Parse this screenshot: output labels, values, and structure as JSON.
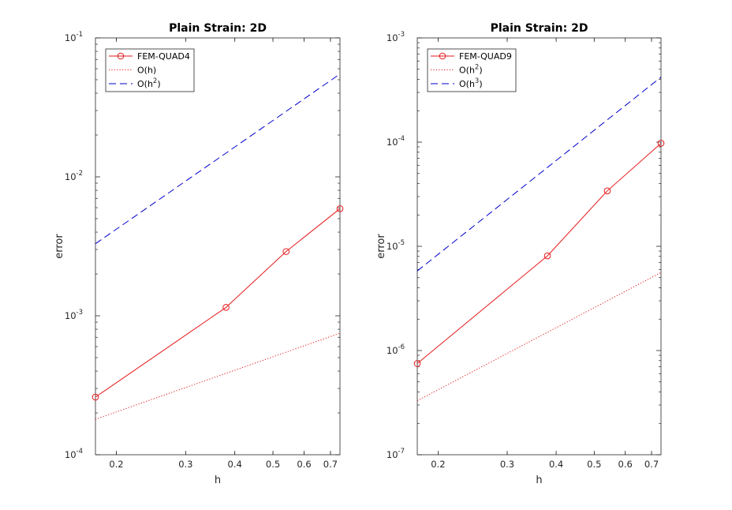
{
  "chart_data": [
    {
      "type": "line",
      "title": "Plain Strain: 2D",
      "xlabel": "h",
      "ylabel": "error",
      "xscale": "log",
      "yscale": "log",
      "xlim": [
        0.177,
        0.74
      ],
      "ylim": [
        0.0001,
        0.1
      ],
      "grid": false,
      "legend_position": "top-left",
      "xticks": [
        {
          "v": 0.2,
          "label": "0.2"
        },
        {
          "v": 0.3,
          "label": "0.3"
        },
        {
          "v": 0.4,
          "label": "0.4"
        },
        {
          "v": 0.5,
          "label": "0.5"
        },
        {
          "v": 0.6,
          "label": "0.6"
        },
        {
          "v": 0.7,
          "label": "0.7"
        }
      ],
      "yticks": [
        {
          "v": 0.0001,
          "base": "10",
          "exp": "-4"
        },
        {
          "v": 0.001,
          "base": "10",
          "exp": "-3"
        },
        {
          "v": 0.01,
          "base": "10",
          "exp": "-2"
        },
        {
          "v": 0.1,
          "base": "10",
          "exp": "-1"
        }
      ],
      "series": [
        {
          "name": "FEM-QUAD4",
          "legend": {
            "base": "FEM-QUAD4",
            "sup": ""
          },
          "color": "#e41a1c",
          "style": "solid",
          "marker": "circle",
          "x": [
            0.177,
            0.38,
            0.54,
            0.74
          ],
          "y": [
            0.00026,
            0.00115,
            0.0029,
            0.0059
          ]
        },
        {
          "name": "O(h)",
          "legend": {
            "base": "O(h)",
            "sup": ""
          },
          "color": "#e41a1c",
          "style": "dotted",
          "marker": "none",
          "x": [
            0.177,
            0.74
          ],
          "y": [
            0.00018,
            0.00075
          ]
        },
        {
          "name": "O(h^2)",
          "legend": {
            "base": "O(h",
            "sup": "2",
            "tail": ")"
          },
          "color": "#0000cc",
          "style": "dashed",
          "marker": "none",
          "x": [
            0.177,
            0.74
          ],
          "y": [
            0.0033,
            0.055
          ]
        }
      ]
    },
    {
      "type": "line",
      "title": "Plain Strain: 2D",
      "xlabel": "h",
      "ylabel": "error",
      "xscale": "log",
      "yscale": "log",
      "xlim": [
        0.177,
        0.74
      ],
      "ylim": [
        1e-07,
        0.001
      ],
      "grid": false,
      "legend_position": "top-left",
      "xticks": [
        {
          "v": 0.2,
          "label": "0.2"
        },
        {
          "v": 0.3,
          "label": "0.3"
        },
        {
          "v": 0.4,
          "label": "0.4"
        },
        {
          "v": 0.5,
          "label": "0.5"
        },
        {
          "v": 0.6,
          "label": "0.6"
        },
        {
          "v": 0.7,
          "label": "0.7"
        }
      ],
      "yticks": [
        {
          "v": 1e-07,
          "base": "10",
          "exp": "-7"
        },
        {
          "v": 1e-06,
          "base": "10",
          "exp": "-6"
        },
        {
          "v": 1e-05,
          "base": "10",
          "exp": "-5"
        },
        {
          "v": 0.0001,
          "base": "10",
          "exp": "-4"
        },
        {
          "v": 0.001,
          "base": "10",
          "exp": "-3"
        }
      ],
      "series": [
        {
          "name": "FEM-QUAD9",
          "legend": {
            "base": "FEM-QUAD9",
            "sup": ""
          },
          "color": "#e41a1c",
          "style": "solid",
          "marker": "circle",
          "x": [
            0.177,
            0.38,
            0.54,
            0.74
          ],
          "y": [
            7.5e-07,
            8.1e-06,
            3.4e-05,
            9.75e-05
          ]
        },
        {
          "name": "O(h^2)",
          "legend": {
            "base": "O(h",
            "sup": "2",
            "tail": ")"
          },
          "color": "#e41a1c",
          "style": "dotted",
          "marker": "none",
          "x": [
            0.177,
            0.74
          ],
          "y": [
            3.3e-07,
            5.6e-06
          ]
        },
        {
          "name": "O(h^3)",
          "legend": {
            "base": "O(h",
            "sup": "3",
            "tail": ")"
          },
          "color": "#0000cc",
          "style": "dashed",
          "marker": "none",
          "x": [
            0.177,
            0.74
          ],
          "y": [
            5.8e-06,
            0.00042
          ]
        }
      ]
    }
  ]
}
